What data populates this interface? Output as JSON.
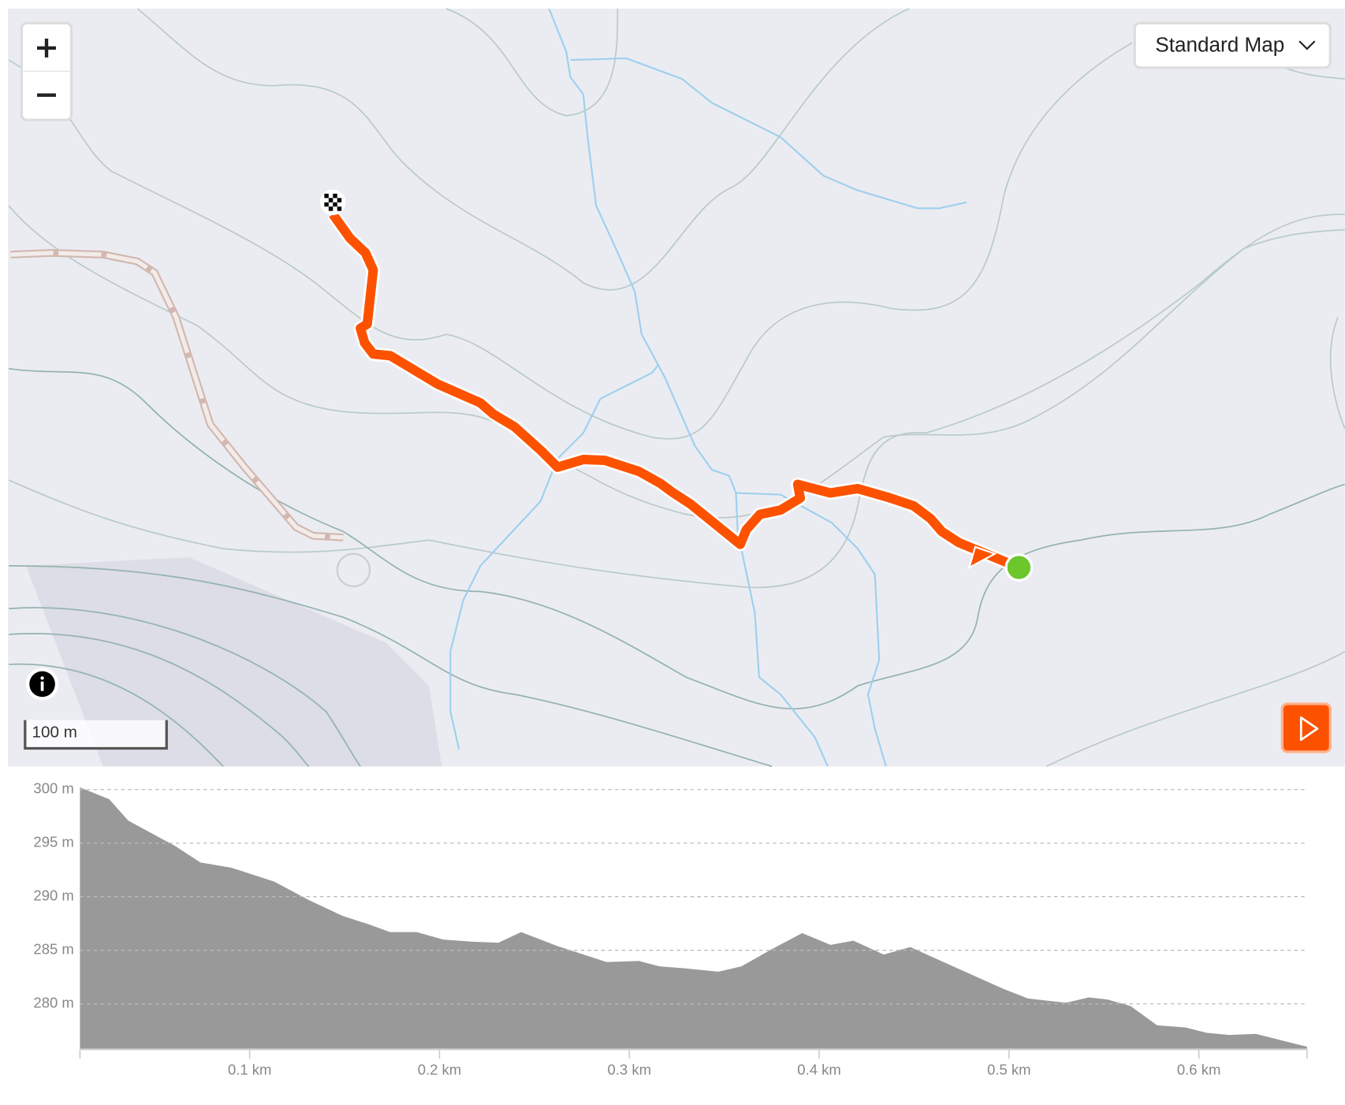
{
  "map": {
    "layer_select": "Standard Map",
    "scale": "100 m"
  },
  "chart_data": {
    "type": "area",
    "color": "#999999",
    "x": [
      0.0106,
      0.026,
      0.036,
      0.061,
      0.074,
      0.0905,
      0.113,
      0.131,
      0.149,
      0.163,
      0.174,
      0.188,
      0.202,
      0.217,
      0.231,
      0.243,
      0.262,
      0.288,
      0.305,
      0.316,
      0.33,
      0.347,
      0.359,
      0.375,
      0.391,
      0.406,
      0.418,
      0.434,
      0.448,
      0.473,
      0.497,
      0.51,
      0.53,
      0.542,
      0.552,
      0.564,
      0.578,
      0.593,
      0.604,
      0.616,
      0.63,
      0.657
    ],
    "values": [
      300.2,
      299.1,
      297.1,
      294.7,
      293.2,
      292.7,
      291.4,
      289.7,
      288.2,
      287.4,
      286.7,
      286.7,
      286.0,
      285.8,
      285.7,
      286.7,
      285.4,
      283.9,
      284.0,
      283.5,
      283.3,
      283.0,
      283.5,
      285.1,
      286.6,
      285.5,
      285.9,
      284.6,
      285.3,
      283.3,
      281.4,
      280.5,
      280.1,
      280.6,
      280.4,
      279.8,
      278.0,
      277.8,
      277.3,
      277.1,
      277.2,
      276.0
    ],
    "xlim": [
      0.0106,
      0.657
    ],
    "ylim": [
      275.76,
      300
    ],
    "xticks": [
      {
        "value": 0.1,
        "label": "0.1 km"
      },
      {
        "value": 0.2,
        "label": "0.2 km"
      },
      {
        "value": 0.3,
        "label": "0.3 km"
      },
      {
        "value": 0.4,
        "label": "0.4 km"
      },
      {
        "value": 0.5,
        "label": "0.5 km"
      },
      {
        "value": 0.6,
        "label": "0.6 km"
      }
    ],
    "yticks": [
      {
        "value": 280,
        "label": "280 m"
      },
      {
        "value": 285,
        "label": "285 m"
      },
      {
        "value": 290,
        "label": "290 m"
      },
      {
        "value": 295,
        "label": "295 m"
      },
      {
        "value": 300,
        "label": "300 m"
      }
    ],
    "grid": true
  }
}
